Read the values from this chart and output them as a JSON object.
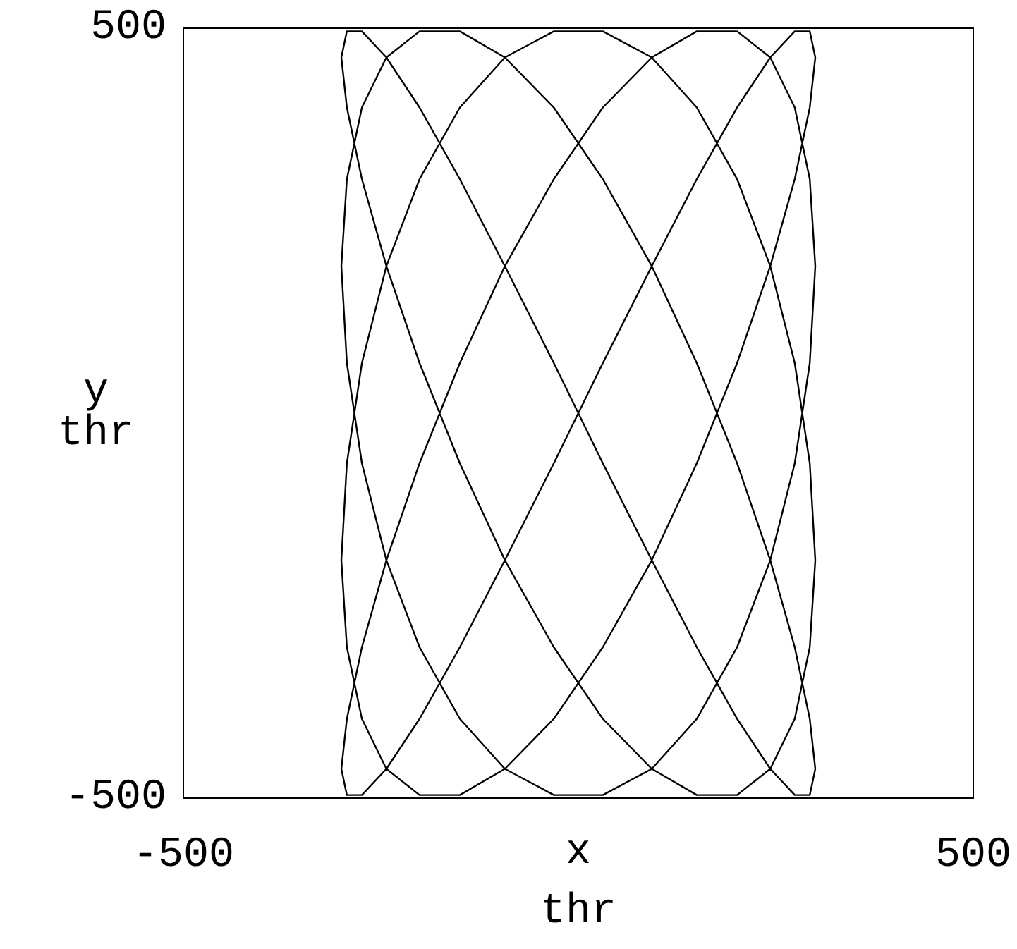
{
  "chart_data": {
    "type": "line",
    "xlabel": "x\nthr",
    "ylabel": "y\nthr",
    "series": [
      {
        "color": "#000000",
        "x": [
          -300,
          -293,
          -274,
          -243,
          -201,
          -150,
          -93,
          -31,
          31,
          93,
          150,
          201,
          243,
          274,
          293,
          300,
          null,
          300,
          293,
          274,
          243,
          201,
          150,
          93,
          31,
          -31,
          -93,
          -150,
          -201,
          -243,
          -274,
          -293,
          -300,
          null,
          -300,
          -293,
          -274,
          -243,
          -201,
          -150,
          -93,
          -31,
          31,
          93,
          150,
          201,
          243,
          274,
          293,
          300,
          null,
          300,
          293,
          274,
          243,
          201,
          150,
          93,
          31,
          -31,
          -93,
          -150,
          -201,
          -243,
          -274,
          -293,
          -300,
          null,
          -300,
          -293,
          -274,
          -243,
          -201,
          -150,
          -93,
          -31,
          31,
          93,
          150,
          201,
          243,
          274,
          293,
          300,
          null,
          300,
          293,
          274,
          243,
          201,
          150,
          93,
          31,
          -31,
          -93,
          -150,
          -201,
          -243,
          -274,
          -293,
          -300,
          null,
          -300,
          -293,
          -274,
          -243,
          -201,
          -150,
          -93,
          -31,
          31,
          93,
          150,
          201,
          243,
          274,
          293,
          300,
          null,
          300,
          293,
          274,
          243,
          201,
          150,
          93,
          31,
          -31,
          -93,
          -150,
          -201,
          -243,
          -274,
          -293,
          -300
        ],
        "values": [
          -462,
          -496,
          -496,
          -462,
          -397,
          -304,
          -191,
          -65,
          65,
          191,
          304,
          397,
          462,
          496,
          496,
          462,
          null,
          462,
          397,
          304,
          191,
          65,
          -65,
          -191,
          -304,
          -397,
          -462,
          -496,
          -496,
          -462,
          -397,
          -304,
          -191,
          null,
          -191,
          -65,
          65,
          191,
          304,
          397,
          462,
          496,
          496,
          462,
          397,
          304,
          191,
          65,
          -65,
          -191,
          null,
          -191,
          -304,
          -397,
          -462,
          -496,
          -496,
          -462,
          -397,
          -304,
          -191,
          -65,
          65,
          191,
          304,
          397,
          462,
          null,
          462,
          496,
          496,
          462,
          397,
          304,
          191,
          65,
          -65,
          -191,
          -304,
          -397,
          -462,
          -496,
          -496,
          -462,
          null,
          -462,
          -397,
          -304,
          -191,
          -65,
          65,
          191,
          304,
          397,
          462,
          496,
          496,
          462,
          397,
          304,
          191,
          null,
          191,
          65,
          -65,
          -191,
          -304,
          -397,
          -462,
          -496,
          -496,
          -462,
          -397,
          -304,
          -191,
          -65,
          65,
          191,
          null,
          191,
          304,
          397,
          462,
          496,
          496,
          462,
          397,
          304,
          191,
          65,
          -65,
          -191,
          -304,
          -397,
          -462
        ]
      }
    ],
    "marker": "none",
    "xlim": [
      -500,
      500
    ],
    "ylim": [
      -500,
      500
    ],
    "xticks": [
      -500,
      500
    ],
    "yticks": [
      -500,
      500
    ]
  }
}
